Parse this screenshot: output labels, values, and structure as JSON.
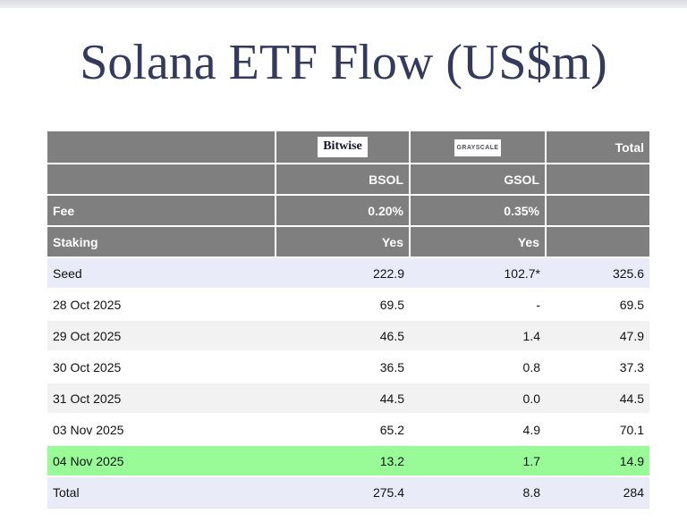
{
  "page": {
    "title": "Solana ETF Flow (US$m)"
  },
  "table": {
    "header": {
      "bitwise": "Bitwise",
      "grayscale": "GRAYSCALE",
      "total": "Total",
      "bsol": "BSOL",
      "gsol": "GSOL"
    },
    "rows": [
      {
        "label": "Fee",
        "bsol": "0.20%",
        "gsol": "0.35%",
        "total": "",
        "kind": "meta"
      },
      {
        "label": "Staking",
        "bsol": "Yes",
        "gsol": "Yes",
        "total": "",
        "kind": "meta"
      },
      {
        "label": "Seed",
        "bsol": "222.9",
        "gsol": "102.7*",
        "total": "325.6",
        "kind": "seed"
      },
      {
        "label": "28 Oct 2025",
        "bsol": "69.5",
        "gsol": "-",
        "total": "69.5",
        "kind": "day"
      },
      {
        "label": "29 Oct 2025",
        "bsol": "46.5",
        "gsol": "1.4",
        "total": "47.9",
        "kind": "day"
      },
      {
        "label": "30 Oct 2025",
        "bsol": "36.5",
        "gsol": "0.8",
        "total": "37.3",
        "kind": "day"
      },
      {
        "label": "31 Oct 2025",
        "bsol": "44.5",
        "gsol": "0.0",
        "total": "44.5",
        "kind": "day"
      },
      {
        "label": "03 Nov 2025",
        "bsol": "65.2",
        "gsol": "4.9",
        "total": "70.1",
        "kind": "day"
      },
      {
        "label": "04 Nov 2025",
        "bsol": "13.2",
        "gsol": "1.7",
        "total": "14.9",
        "kind": "latest"
      },
      {
        "label": "Total",
        "bsol": "275.4",
        "gsol": "8.8",
        "total": "284",
        "kind": "summary"
      }
    ]
  },
  "colors": {
    "header_gray": "#7f7f7f",
    "seed_lavender": "#e9ecf8",
    "stripe_gray": "#f2f2f2",
    "latest_green": "#98fb98",
    "title_navy": "#333a5c"
  },
  "chart_data": {
    "type": "table",
    "title": "Solana ETF Flow (US$m)",
    "columns": [
      "",
      "Bitwise BSOL",
      "Grayscale GSOL",
      "Total"
    ],
    "meta": {
      "fee": {
        "bsol": "0.20%",
        "gsol": "0.35%"
      },
      "staking": {
        "bsol": "Yes",
        "gsol": "Yes"
      }
    },
    "rows": [
      {
        "label": "Seed",
        "bsol": 222.9,
        "gsol": "102.7*",
        "total": 325.6
      },
      {
        "label": "28 Oct 2025",
        "bsol": 69.5,
        "gsol": null,
        "total": 69.5
      },
      {
        "label": "29 Oct 2025",
        "bsol": 46.5,
        "gsol": 1.4,
        "total": 47.9
      },
      {
        "label": "30 Oct 2025",
        "bsol": 36.5,
        "gsol": 0.8,
        "total": 37.3
      },
      {
        "label": "31 Oct 2025",
        "bsol": 44.5,
        "gsol": 0.0,
        "total": 44.5
      },
      {
        "label": "03 Nov 2025",
        "bsol": 65.2,
        "gsol": 4.9,
        "total": 70.1
      },
      {
        "label": "04 Nov 2025",
        "bsol": 13.2,
        "gsol": 1.7,
        "total": 14.9
      },
      {
        "label": "Total",
        "bsol": 275.4,
        "gsol": 8.8,
        "total": 284
      }
    ]
  }
}
